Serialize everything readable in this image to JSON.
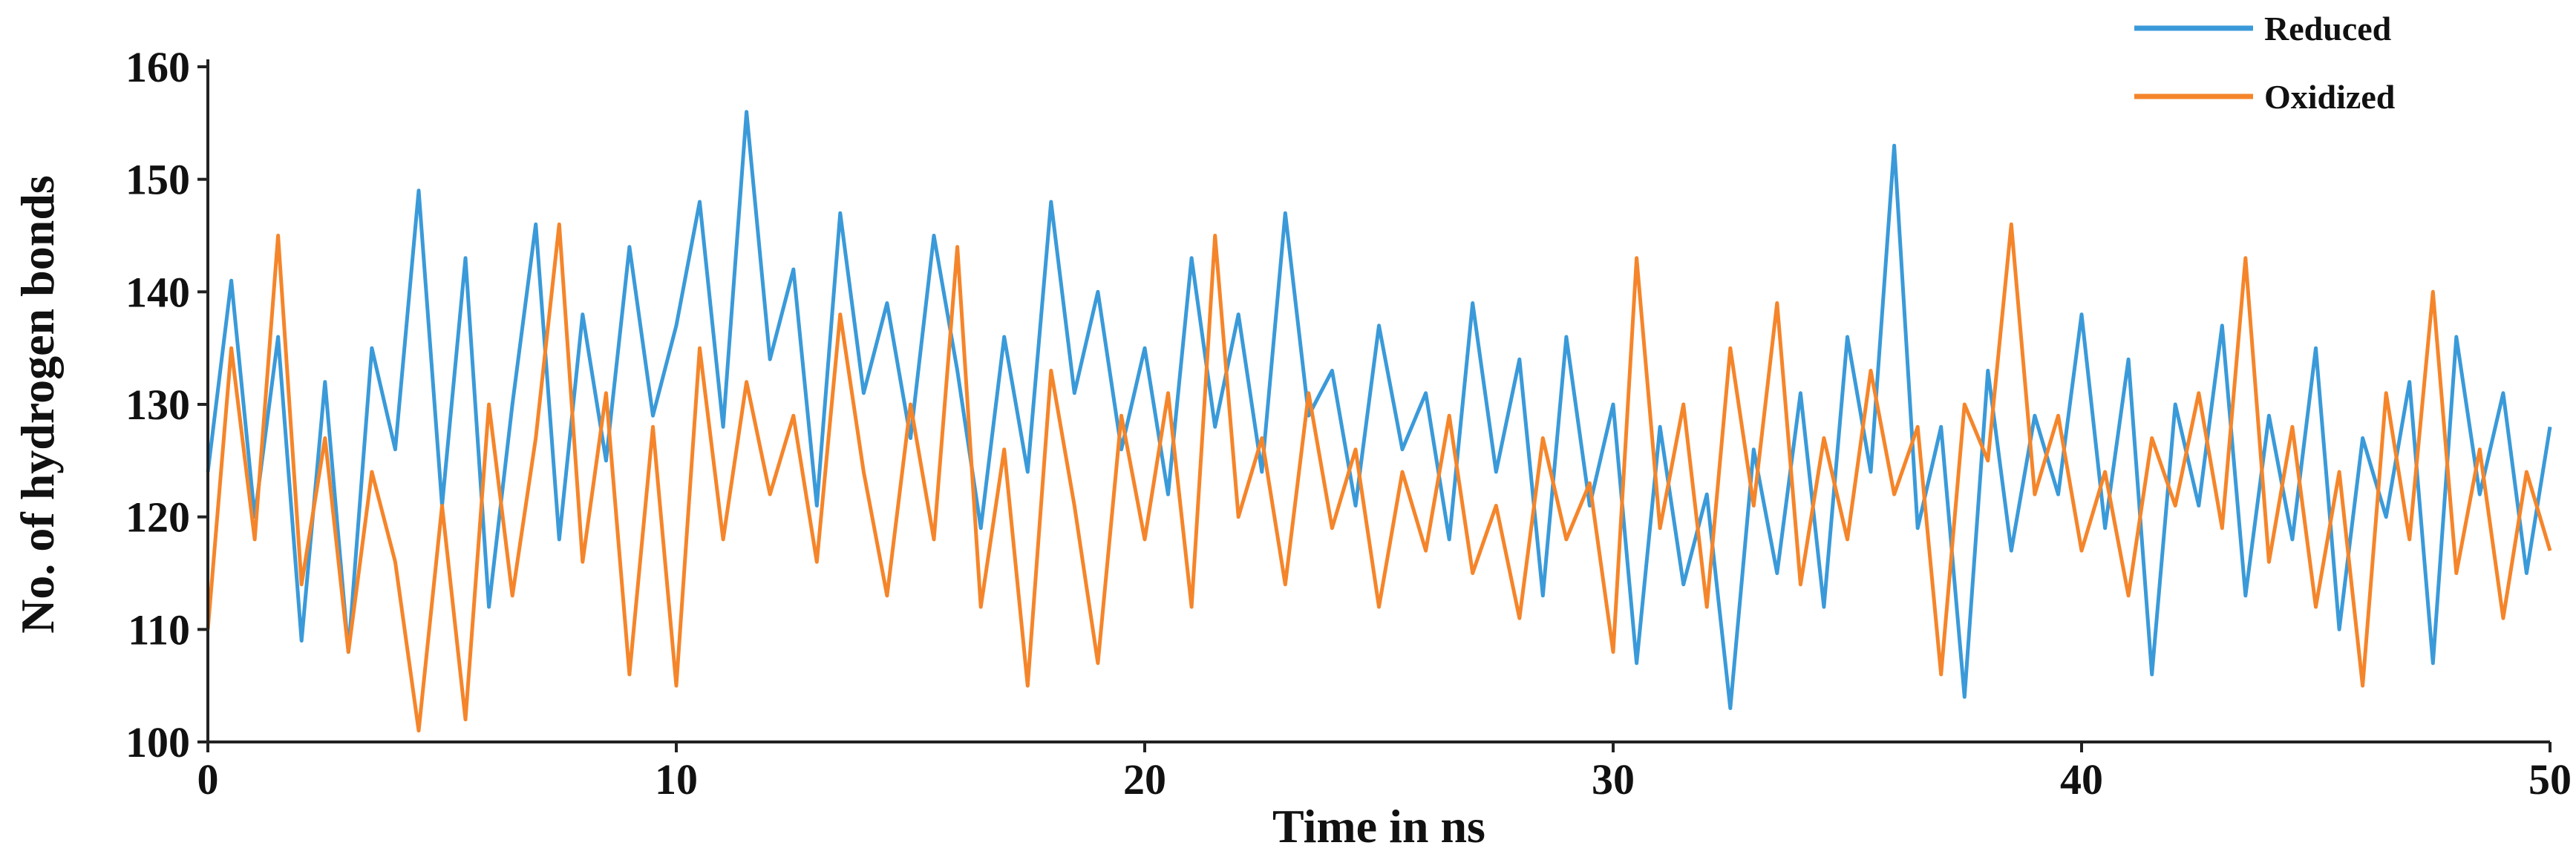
{
  "chart_data": {
    "type": "line",
    "title": "",
    "xlabel": "Time in ns",
    "ylabel": "No. of hydrogen bonds",
    "xlim": [
      0,
      50
    ],
    "ylim": [
      100,
      160
    ],
    "xticks": [
      0,
      10,
      20,
      30,
      40,
      50
    ],
    "yticks": [
      100,
      110,
      120,
      130,
      140,
      150,
      160
    ],
    "grid": false,
    "legend_position": "top-right",
    "series": [
      {
        "name": "Reduced",
        "color": "#3a9ad9",
        "x": [
          0,
          0.5,
          1,
          1.5,
          2,
          2.5,
          3,
          3.5,
          4,
          4.5,
          5,
          5.5,
          6,
          6.5,
          7,
          7.5,
          8,
          8.5,
          9,
          9.5,
          10,
          10.5,
          11,
          11.5,
          12,
          12.5,
          13,
          13.5,
          14,
          14.5,
          15,
          15.5,
          16,
          16.5,
          17,
          17.5,
          18,
          18.5,
          19,
          19.5,
          20,
          20.5,
          21,
          21.5,
          22,
          22.5,
          23,
          23.5,
          24,
          24.5,
          25,
          25.5,
          26,
          26.5,
          27,
          27.5,
          28,
          28.5,
          29,
          29.5,
          30,
          30.5,
          31,
          31.5,
          32,
          32.5,
          33,
          33.5,
          34,
          34.5,
          35,
          35.5,
          36,
          36.5,
          37,
          37.5,
          38,
          38.5,
          39,
          39.5,
          40,
          40.5,
          41,
          41.5,
          42,
          42.5,
          43,
          43.5,
          44,
          44.5,
          45,
          45.5,
          46,
          46.5,
          47,
          47.5,
          48,
          48.5,
          49,
          49.5,
          50
        ],
        "values": [
          124,
          141,
          120,
          136,
          109,
          132,
          108,
          135,
          126,
          149,
          121,
          143,
          112,
          130,
          146,
          118,
          138,
          125,
          144,
          129,
          137,
          148,
          128,
          156,
          134,
          142,
          121,
          147,
          131,
          139,
          127,
          145,
          133,
          119,
          136,
          124,
          148,
          131,
          140,
          126,
          135,
          122,
          143,
          128,
          138,
          124,
          147,
          129,
          133,
          121,
          137,
          126,
          131,
          118,
          139,
          124,
          134,
          113,
          136,
          121,
          130,
          107,
          128,
          114,
          122,
          103,
          126,
          115,
          131,
          112,
          136,
          124,
          153,
          119,
          128,
          104,
          133,
          117,
          129,
          122,
          138,
          119,
          134,
          106,
          130,
          121,
          137,
          113,
          129,
          118,
          135,
          110,
          127,
          120,
          132,
          107,
          136,
          122,
          131,
          115,
          128
        ]
      },
      {
        "name": "Oxidized",
        "color": "#f5852a",
        "x": [
          0,
          0.5,
          1,
          1.5,
          2,
          2.5,
          3,
          3.5,
          4,
          4.5,
          5,
          5.5,
          6,
          6.5,
          7,
          7.5,
          8,
          8.5,
          9,
          9.5,
          10,
          10.5,
          11,
          11.5,
          12,
          12.5,
          13,
          13.5,
          14,
          14.5,
          15,
          15.5,
          16,
          16.5,
          17,
          17.5,
          18,
          18.5,
          19,
          19.5,
          20,
          20.5,
          21,
          21.5,
          22,
          22.5,
          23,
          23.5,
          24,
          24.5,
          25,
          25.5,
          26,
          26.5,
          27,
          27.5,
          28,
          28.5,
          29,
          29.5,
          30,
          30.5,
          31,
          31.5,
          32,
          32.5,
          33,
          33.5,
          34,
          34.5,
          35,
          35.5,
          36,
          36.5,
          37,
          37.5,
          38,
          38.5,
          39,
          39.5,
          40,
          40.5,
          41,
          41.5,
          42,
          42.5,
          43,
          43.5,
          44,
          44.5,
          45,
          45.5,
          46,
          46.5,
          47,
          47.5,
          48,
          48.5,
          49,
          49.5,
          50
        ],
        "values": [
          110,
          135,
          118,
          145,
          114,
          127,
          108,
          124,
          116,
          101,
          121,
          102,
          130,
          113,
          127,
          146,
          116,
          131,
          106,
          128,
          105,
          135,
          118,
          132,
          122,
          129,
          116,
          138,
          124,
          113,
          130,
          118,
          144,
          112,
          126,
          105,
          133,
          121,
          107,
          129,
          118,
          131,
          112,
          145,
          120,
          127,
          114,
          131,
          119,
          126,
          112,
          124,
          117,
          129,
          115,
          121,
          111,
          127,
          118,
          123,
          108,
          143,
          119,
          130,
          112,
          135,
          121,
          139,
          114,
          127,
          118,
          133,
          122,
          128,
          106,
          130,
          125,
          146,
          122,
          129,
          117,
          124,
          113,
          127,
          121,
          131,
          119,
          143,
          116,
          128,
          112,
          124,
          105,
          131,
          118,
          140,
          115,
          126,
          111,
          124,
          117
        ]
      }
    ]
  }
}
